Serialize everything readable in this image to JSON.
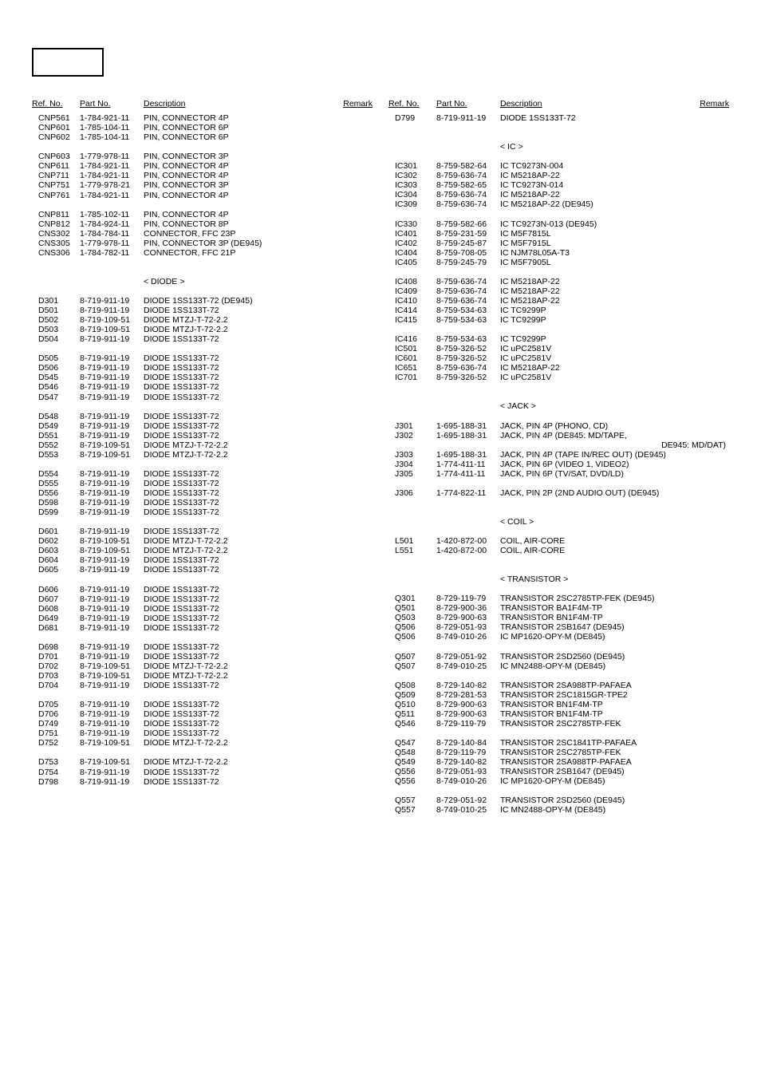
{
  "headers": {
    "ref": "Ref. No.",
    "part": "Part No.",
    "desc": "Description",
    "remark": "Remark"
  },
  "sections": {
    "diode": "< DIODE >",
    "ic": "< IC >",
    "jack": "< JACK >",
    "coil": "< COIL >",
    "transistor": "< TRANSISTOR >"
  },
  "left": [
    [
      [
        "CNP561",
        "1-784-921-11",
        "PIN, CONNECTOR 4P"
      ],
      [
        "CNP601",
        "1-785-104-11",
        "PIN, CONNECTOR 6P"
      ],
      [
        "CNP602",
        "1-785-104-11",
        "PIN, CONNECTOR 6P"
      ]
    ],
    [
      [
        "CNP603",
        "1-779-978-11",
        "PIN, CONNECTOR 3P"
      ],
      [
        "CNP611",
        "1-784-921-11",
        "PIN, CONNECTOR 4P"
      ],
      [
        "CNP711",
        "1-784-921-11",
        "PIN, CONNECTOR 4P"
      ],
      [
        "CNP751",
        "1-779-978-21",
        "PIN, CONNECTOR 3P"
      ],
      [
        "CNP761",
        "1-784-921-11",
        "PIN, CONNECTOR 4P"
      ]
    ],
    [
      [
        "CNP811",
        "1-785-102-11",
        "PIN, CONNECTOR 4P"
      ],
      [
        "CNP812",
        "1-784-924-11",
        "PIN, CONNECTOR 8P"
      ],
      [
        "CNS302",
        "1-784-784-11",
        "CONNECTOR, FFC 23P"
      ],
      [
        "CNS305",
        "1-779-978-11",
        "PIN, CONNECTOR 3P (DE945)"
      ],
      [
        "CNS306",
        "1-784-782-11",
        "CONNECTOR, FFC 21P"
      ]
    ],
    "DIODE",
    [
      [
        "D301",
        "8-719-911-19",
        "DIODE  1SS133T-72 (DE945)"
      ],
      [
        "D501",
        "8-719-911-19",
        "DIODE  1SS133T-72"
      ],
      [
        "D502",
        "8-719-109-51",
        "DIODE  MTZJ-T-72-2.2"
      ],
      [
        "D503",
        "8-719-109-51",
        "DIODE  MTZJ-T-72-2.2"
      ],
      [
        "D504",
        "8-719-911-19",
        "DIODE  1SS133T-72"
      ]
    ],
    [
      [
        "D505",
        "8-719-911-19",
        "DIODE  1SS133T-72"
      ],
      [
        "D506",
        "8-719-911-19",
        "DIODE  1SS133T-72"
      ],
      [
        "D545",
        "8-719-911-19",
        "DIODE  1SS133T-72"
      ],
      [
        "D546",
        "8-719-911-19",
        "DIODE  1SS133T-72"
      ],
      [
        "D547",
        "8-719-911-19",
        "DIODE  1SS133T-72"
      ]
    ],
    [
      [
        "D548",
        "8-719-911-19",
        "DIODE  1SS133T-72"
      ],
      [
        "D549",
        "8-719-911-19",
        "DIODE  1SS133T-72"
      ],
      [
        "D551",
        "8-719-911-19",
        "DIODE  1SS133T-72"
      ],
      [
        "D552",
        "8-719-109-51",
        "DIODE  MTZJ-T-72-2.2"
      ],
      [
        "D553",
        "8-719-109-51",
        "DIODE  MTZJ-T-72-2.2"
      ]
    ],
    [
      [
        "D554",
        "8-719-911-19",
        "DIODE  1SS133T-72"
      ],
      [
        "D555",
        "8-719-911-19",
        "DIODE  1SS133T-72"
      ],
      [
        "D556",
        "8-719-911-19",
        "DIODE  1SS133T-72"
      ],
      [
        "D598",
        "8-719-911-19",
        "DIODE  1SS133T-72"
      ],
      [
        "D599",
        "8-719-911-19",
        "DIODE  1SS133T-72"
      ]
    ],
    [
      [
        "D601",
        "8-719-911-19",
        "DIODE  1SS133T-72"
      ],
      [
        "D602",
        "8-719-109-51",
        "DIODE  MTZJ-T-72-2.2"
      ],
      [
        "D603",
        "8-719-109-51",
        "DIODE  MTZJ-T-72-2.2"
      ],
      [
        "D604",
        "8-719-911-19",
        "DIODE  1SS133T-72"
      ],
      [
        "D605",
        "8-719-911-19",
        "DIODE  1SS133T-72"
      ]
    ],
    [
      [
        "D606",
        "8-719-911-19",
        "DIODE  1SS133T-72"
      ],
      [
        "D607",
        "8-719-911-19",
        "DIODE  1SS133T-72"
      ],
      [
        "D608",
        "8-719-911-19",
        "DIODE  1SS133T-72"
      ],
      [
        "D649",
        "8-719-911-19",
        "DIODE  1SS133T-72"
      ],
      [
        "D681",
        "8-719-911-19",
        "DIODE  1SS133T-72"
      ]
    ],
    [
      [
        "D698",
        "8-719-911-19",
        "DIODE  1SS133T-72"
      ],
      [
        "D701",
        "8-719-911-19",
        "DIODE  1SS133T-72"
      ],
      [
        "D702",
        "8-719-109-51",
        "DIODE  MTZJ-T-72-2.2"
      ],
      [
        "D703",
        "8-719-109-51",
        "DIODE  MTZJ-T-72-2.2"
      ],
      [
        "D704",
        "8-719-911-19",
        "DIODE  1SS133T-72"
      ]
    ],
    [
      [
        "D705",
        "8-719-911-19",
        "DIODE  1SS133T-72"
      ],
      [
        "D706",
        "8-719-911-19",
        "DIODE  1SS133T-72"
      ],
      [
        "D749",
        "8-719-911-19",
        "DIODE  1SS133T-72"
      ],
      [
        "D751",
        "8-719-911-19",
        "DIODE  1SS133T-72"
      ],
      [
        "D752",
        "8-719-109-51",
        "DIODE  MTZJ-T-72-2.2"
      ]
    ],
    [
      [
        "D753",
        "8-719-109-51",
        "DIODE  MTZJ-T-72-2.2"
      ],
      [
        "D754",
        "8-719-911-19",
        "DIODE  1SS133T-72"
      ],
      [
        "D798",
        "8-719-911-19",
        "DIODE  1SS133T-72"
      ]
    ]
  ],
  "right": [
    [
      [
        "D799",
        "8-719-911-19",
        "DIODE  1SS133T-72"
      ]
    ],
    "IC",
    [
      [
        "IC301",
        "8-759-582-64",
        "IC   TC9273N-004"
      ],
      [
        "IC302",
        "8-759-636-74",
        "IC   M5218AP-22"
      ],
      [
        "IC303",
        "8-759-582-65",
        "IC   TC9273N-014"
      ],
      [
        "IC304",
        "8-759-636-74",
        "IC   M5218AP-22"
      ],
      [
        "IC309",
        "8-759-636-74",
        "IC   M5218AP-22 (DE945)"
      ]
    ],
    [
      [
        "IC330",
        "8-759-582-66",
        "IC   TC9273N-013 (DE945)"
      ],
      [
        "IC401",
        "8-759-231-59",
        "IC   M5F7815L"
      ],
      [
        "IC402",
        "8-759-245-87",
        "IC   M5F7915L"
      ],
      [
        "IC404",
        "8-759-708-05",
        "IC   NJM78L05A-T3"
      ],
      [
        "IC405",
        "8-759-245-79",
        "IC   M5F7905L"
      ]
    ],
    [
      [
        "IC408",
        "8-759-636-74",
        "IC   M5218AP-22"
      ],
      [
        "IC409",
        "8-759-636-74",
        "IC   M5218AP-22"
      ],
      [
        "IC410",
        "8-759-636-74",
        "IC   M5218AP-22"
      ],
      [
        "IC414",
        "8-759-534-63",
        "IC   TC9299P"
      ],
      [
        "IC415",
        "8-759-534-63",
        "IC   TC9299P"
      ]
    ],
    [
      [
        "IC416",
        "8-759-534-63",
        "IC   TC9299P"
      ],
      [
        "IC501",
        "8-759-326-52",
        "IC   uPC2581V"
      ],
      [
        "IC601",
        "8-759-326-52",
        "IC   uPC2581V"
      ],
      [
        "IC651",
        "8-759-636-74",
        "IC   M5218AP-22"
      ],
      [
        "IC701",
        "8-759-326-52",
        "IC   uPC2581V"
      ]
    ],
    "JACK",
    [
      [
        "J301",
        "1-695-188-31",
        "JACK, PIN 4P (PHONO, CD)"
      ],
      [
        "J302",
        "1-695-188-31",
        "JACK, PIN 4P (DE845: MD/TAPE,"
      ],
      [
        "",
        "",
        "",
        "DE945: MD/DAT)"
      ],
      [
        "J303",
        "1-695-188-31",
        "JACK, PIN 4P (TAPE IN/REC OUT) (DE945)"
      ],
      [
        "J304",
        "1-774-411-11",
        "JACK, PIN 6P (VIDEO 1, VIDEO2)"
      ],
      [
        "J305",
        "1-774-411-11",
        "JACK, PIN 6P (TV/SAT, DVD/LD)"
      ]
    ],
    [
      [
        "J306",
        "1-774-822-11",
        "JACK, PIN 2P (2ND AUDIO OUT) (DE945)"
      ]
    ],
    "COIL",
    [
      [
        "L501",
        "1-420-872-00",
        "COIL, AIR-CORE"
      ],
      [
        "L551",
        "1-420-872-00",
        "COIL, AIR-CORE"
      ]
    ],
    "TRANSISTOR",
    [
      [
        "Q301",
        "8-729-119-79",
        "TRANSISTOR       2SC2785TP-FEK (DE945)"
      ],
      [
        "Q501",
        "8-729-900-36",
        "TRANSISTOR       BA1F4M-TP"
      ],
      [
        "Q503",
        "8-729-900-63",
        "TRANSISTOR       BN1F4M-TP"
      ],
      [
        "Q506",
        "8-729-051-93",
        "TRANSISTOR 2SB1647 (DE945)"
      ],
      [
        "Q506",
        "8-749-010-26",
        "IC MP1620-OPY-M (DE845)"
      ]
    ],
    [
      [
        "Q507",
        "8-729-051-92",
        "TRANSISTOR 2SD2560 (DE945)"
      ],
      [
        "Q507",
        "8-749-010-25",
        "IC MN2488-OPY-M (DE845)"
      ]
    ],
    [
      [
        "Q508",
        "8-729-140-82",
        "TRANSISTOR       2SA988TP-PAFAEA"
      ],
      [
        "Q509",
        "8-729-281-53",
        "TRANSISTOR       2SC1815GR-TPE2"
      ],
      [
        "Q510",
        "8-729-900-63",
        "TRANSISTOR       BN1F4M-TP"
      ],
      [
        "Q511",
        "8-729-900-63",
        "TRANSISTOR       BN1F4M-TP"
      ],
      [
        "Q546",
        "8-729-119-79",
        "TRANSISTOR       2SC2785TP-FEK"
      ]
    ],
    [
      [
        "Q547",
        "8-729-140-84",
        "TRANSISTOR       2SC1841TP-PAFAEA"
      ],
      [
        "Q548",
        "8-729-119-79",
        "TRANSISTOR       2SC2785TP-FEK"
      ],
      [
        "Q549",
        "8-729-140-82",
        "TRANSISTOR       2SA988TP-PAFAEA"
      ],
      [
        "Q556",
        "8-729-051-93",
        "TRANSISTOR 2SB1647 (DE945)"
      ],
      [
        "Q556",
        "8-749-010-26",
        "IC MP1620-OPY-M (DE845)"
      ]
    ],
    [
      [
        "Q557",
        "8-729-051-92",
        "TRANSISTOR 2SD2560 (DE945)"
      ],
      [
        "Q557",
        "8-749-010-25",
        "IC MN2488-OPY-M (DE845)"
      ]
    ]
  ]
}
